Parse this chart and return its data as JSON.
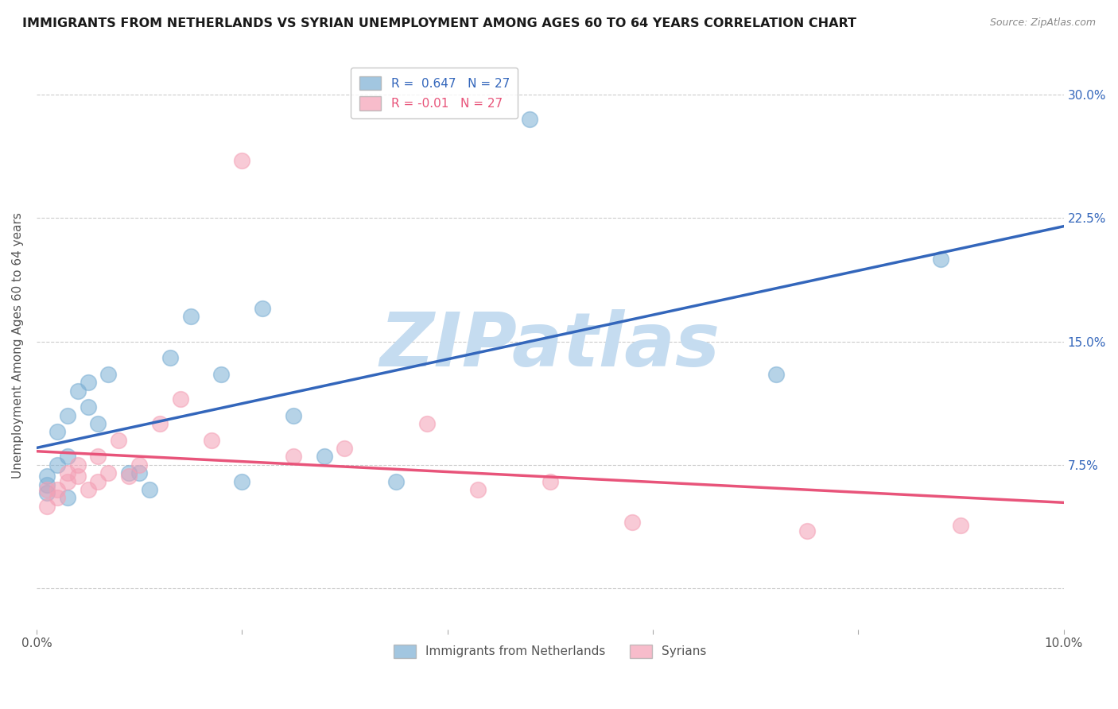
{
  "title": "IMMIGRANTS FROM NETHERLANDS VS SYRIAN UNEMPLOYMENT AMONG AGES 60 TO 64 YEARS CORRELATION CHART",
  "source_text": "Source: ZipAtlas.com",
  "ylabel": "Unemployment Among Ages 60 to 64 years",
  "xlim": [
    0.0,
    0.1
  ],
  "ylim": [
    -0.025,
    0.32
  ],
  "xticks": [
    0.0,
    0.02,
    0.04,
    0.06,
    0.08,
    0.1
  ],
  "xtick_labels": [
    "0.0%",
    "",
    "",
    "",
    "",
    "10.0%"
  ],
  "yticks": [
    0.0,
    0.075,
    0.15,
    0.225,
    0.3
  ],
  "ytick_labels_right": [
    "",
    "7.5%",
    "15.0%",
    "22.5%",
    "30.0%"
  ],
  "blue_R": 0.647,
  "blue_N": 27,
  "pink_R": -0.01,
  "pink_N": 27,
  "blue_color": "#7BAFD4",
  "pink_color": "#F4A0B5",
  "blue_line_color": "#3366BB",
  "pink_line_color": "#E8547A",
  "watermark": "ZIPatlas",
  "watermark_color": "#C5DCF0",
  "grid_color": "#CCCCCC",
  "blue_scatter_x": [
    0.001,
    0.001,
    0.001,
    0.002,
    0.002,
    0.003,
    0.003,
    0.003,
    0.004,
    0.005,
    0.005,
    0.006,
    0.007,
    0.009,
    0.01,
    0.011,
    0.013,
    0.015,
    0.018,
    0.02,
    0.022,
    0.025,
    0.028,
    0.035,
    0.048,
    0.072,
    0.088
  ],
  "blue_scatter_y": [
    0.058,
    0.063,
    0.068,
    0.075,
    0.095,
    0.055,
    0.08,
    0.105,
    0.12,
    0.11,
    0.125,
    0.1,
    0.13,
    0.07,
    0.07,
    0.06,
    0.14,
    0.165,
    0.13,
    0.065,
    0.17,
    0.105,
    0.08,
    0.065,
    0.285,
    0.13,
    0.2
  ],
  "pink_scatter_x": [
    0.001,
    0.001,
    0.002,
    0.002,
    0.003,
    0.003,
    0.004,
    0.004,
    0.005,
    0.006,
    0.006,
    0.007,
    0.008,
    0.009,
    0.01,
    0.012,
    0.014,
    0.017,
    0.02,
    0.025,
    0.03,
    0.038,
    0.043,
    0.05,
    0.058,
    0.075,
    0.09
  ],
  "pink_scatter_y": [
    0.05,
    0.06,
    0.06,
    0.055,
    0.065,
    0.07,
    0.068,
    0.075,
    0.06,
    0.065,
    0.08,
    0.07,
    0.09,
    0.068,
    0.075,
    0.1,
    0.115,
    0.09,
    0.26,
    0.08,
    0.085,
    0.1,
    0.06,
    0.065,
    0.04,
    0.035,
    0.038
  ],
  "legend_blue_label": "Immigrants from Netherlands",
  "legend_pink_label": "Syrians",
  "title_fontsize": 11.5,
  "axis_label_fontsize": 11,
  "tick_fontsize": 11
}
